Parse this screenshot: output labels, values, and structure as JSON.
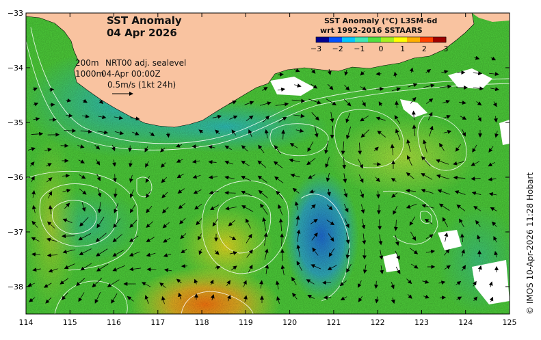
{
  "map": {
    "title_line1": "SST Anomaly",
    "title_line2": "04 Apr 2026",
    "region_bounds": {
      "lon_min": 114,
      "lon_max": 125,
      "lat_min": -38.5,
      "lat_max": -33
    },
    "x_ticks": [
      "114",
      "115",
      "116",
      "117",
      "118",
      "119",
      "120",
      "121",
      "122",
      "123",
      "124",
      "125"
    ],
    "y_ticks": [
      "-33",
      "-34",
      "-35",
      "-36",
      "-37",
      "-38"
    ],
    "contour_labels": {
      "line1_depth": "200m",
      "line2_depth": "1000m"
    },
    "velocity_notes": {
      "line1_text": "NRT00 adj. sealevel",
      "line2_text": "04-Apr 00:00Z",
      "scale_text": "0.5m/s (1kt 24h)"
    },
    "credit": "© IMOS 10-Apr-2026 11:28 Hobart"
  },
  "legend": {
    "title_line1": "SST Anomaly (°C) L3SM-6d",
    "title_line2": "wrt 1992-2016 SSTAARS",
    "ticks": [
      "-3",
      "-2",
      "-1",
      "0",
      "1",
      "2",
      "3"
    ],
    "colors": [
      "#00008f",
      "#0050ff",
      "#00c8ff",
      "#3ce8b4",
      "#50e040",
      "#a6f020",
      "#ffff00",
      "#ffb000",
      "#ff4000",
      "#a00000"
    ]
  },
  "colors": {
    "land": "#f9c3a0",
    "no_data": "#ffffff",
    "sst_green": "#4fd33b",
    "sst_cyan": "#2ec3c3",
    "sst_blue": "#2a88e6",
    "sst_yellow": "#e8e82a",
    "sst_orange": "#f5a623"
  }
}
